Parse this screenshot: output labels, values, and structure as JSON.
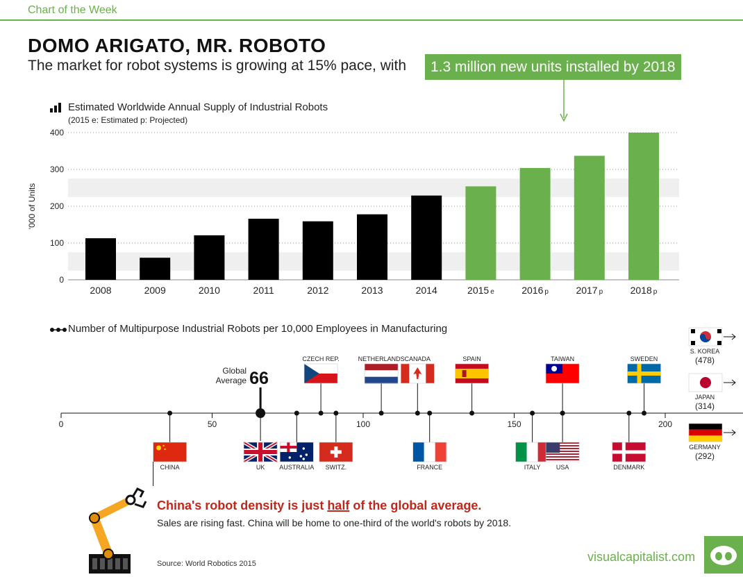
{
  "header": {
    "kicker": "Chart of the Week",
    "title": "DOMO ARIGATO, MR. ROBOTO",
    "subtitle": "The market for robot systems is growing at 15% pace, with",
    "highlight": "1.3 million new units installed by 2018"
  },
  "colors": {
    "accent": "#6ab04c",
    "dark": "#000000",
    "alert": "#c0281c",
    "band": "#efefef"
  },
  "chart_data": [
    {
      "type": "bar",
      "title": "Estimated Worldwide Annual Supply of Industrial Robots",
      "subtitle": "(2015  e: Estimated  p: Projected)",
      "ylabel": "'000 of Units",
      "ylim": [
        0,
        400
      ],
      "yticks": [
        0,
        100,
        200,
        300,
        400
      ],
      "grid": true,
      "categories": [
        "2008",
        "2009",
        "2010",
        "2011",
        "2012",
        "2013",
        "2014",
        "2015",
        "2016",
        "2017",
        "2018"
      ],
      "suffixes": [
        "",
        "",
        "",
        "",
        "",
        "",
        "",
        "e",
        "p",
        "p",
        "p"
      ],
      "values": [
        113,
        60,
        121,
        166,
        159,
        178,
        229,
        254,
        304,
        337,
        400
      ],
      "bar_status": [
        "actual",
        "actual",
        "actual",
        "actual",
        "actual",
        "actual",
        "actual",
        "estimated",
        "projected",
        "projected",
        "projected"
      ]
    },
    {
      "type": "scatter",
      "title": "Number of Multipurpose Industrial Robots per 10,000 Employees in Manufacturing",
      "xlim": [
        0,
        200
      ],
      "xticks": [
        0,
        50,
        100,
        150,
        200
      ],
      "global_average": {
        "label_line1": "Global",
        "label_line2": "Average",
        "value": 66
      },
      "points": [
        {
          "country": "CHINA",
          "value": 36,
          "side": "below",
          "flag": "china"
        },
        {
          "country": "UK",
          "value": 66,
          "side": "below",
          "flag": "uk"
        },
        {
          "country": "AUSTRALIA",
          "value": 78,
          "side": "below",
          "flag": "australia"
        },
        {
          "country": "CZECH REP.",
          "value": 86,
          "side": "above",
          "flag": "czech"
        },
        {
          "country": "SWITZ.",
          "value": 91,
          "side": "below",
          "flag": "switzerland"
        },
        {
          "country": "NETHERLANDS",
          "value": 106,
          "side": "above",
          "flag": "netherlands"
        },
        {
          "country": "CANADA",
          "value": 118,
          "side": "above",
          "flag": "canada"
        },
        {
          "country": "FRANCE",
          "value": 122,
          "side": "below",
          "flag": "france"
        },
        {
          "country": "SPAIN",
          "value": 136,
          "side": "above",
          "flag": "spain"
        },
        {
          "country": "ITALY",
          "value": 156,
          "side": "below",
          "flag": "italy"
        },
        {
          "country": "TAIWAN",
          "value": 166,
          "side": "above",
          "flag": "taiwan"
        },
        {
          "country": "USA",
          "value": 166,
          "side": "below",
          "flag": "usa"
        },
        {
          "country": "DENMARK",
          "value": 188,
          "side": "below",
          "flag": "denmark"
        },
        {
          "country": "SWEDEN",
          "value": 193,
          "side": "above",
          "flag": "sweden"
        }
      ],
      "off_scale": [
        {
          "country": "S. KOREA",
          "value": 478,
          "value_label": "(478)",
          "flag": "korea"
        },
        {
          "country": "JAPAN",
          "value": 314,
          "value_label": "(314)",
          "flag": "japan"
        },
        {
          "country": "GERMANY",
          "value": 292,
          "value_label": "(292)",
          "flag": "germany"
        }
      ]
    }
  ],
  "callout": {
    "head_before": "China's robot density is just ",
    "head_emph": "half",
    "head_after": " of the global average.",
    "body": "Sales are rising fast. China will be home to one-third of the world's robots by 2018."
  },
  "footer": {
    "source": "Source: World Robotics 2015",
    "brand": "visualcapitalist.com"
  }
}
